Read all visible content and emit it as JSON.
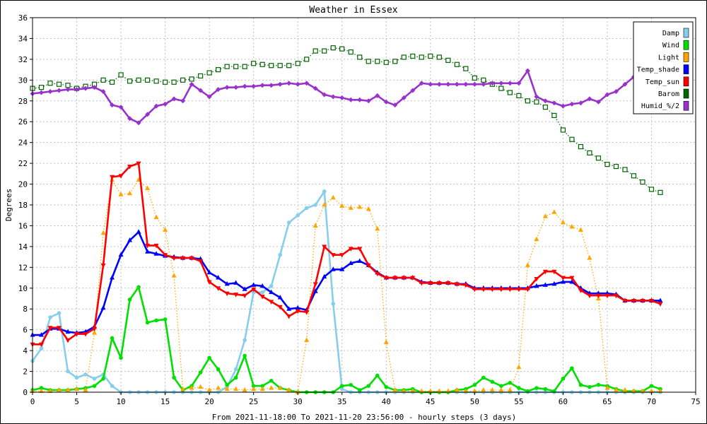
{
  "chart_data": {
    "type": "line",
    "title": "Weather in Essex",
    "ylabel": "Degrees",
    "xlabel": "From 2021-11-18:00 To 2021-11-20 23:56:00 - hourly steps (3 days)",
    "xlim": [
      0,
      75
    ],
    "ylim": [
      0,
      36
    ],
    "xticks": [
      0,
      5,
      10,
      15,
      20,
      25,
      30,
      35,
      40,
      45,
      50,
      55,
      60,
      65,
      70,
      75
    ],
    "yticks": [
      0,
      2,
      4,
      6,
      8,
      10,
      12,
      14,
      16,
      18,
      20,
      22,
      24,
      26,
      28,
      30,
      32,
      34,
      36
    ],
    "grid": true,
    "legend_position": "top-right",
    "x": [
      0,
      1,
      2,
      3,
      4,
      5,
      6,
      7,
      8,
      9,
      10,
      11,
      12,
      13,
      14,
      15,
      16,
      17,
      18,
      19,
      20,
      21,
      22,
      23,
      24,
      25,
      26,
      27,
      28,
      29,
      30,
      31,
      32,
      33,
      34,
      35,
      36,
      37,
      38,
      39,
      40,
      41,
      42,
      43,
      44,
      45,
      46,
      47,
      48,
      49,
      50,
      51,
      52,
      53,
      54,
      55,
      56,
      57,
      58,
      59,
      60,
      61,
      62,
      63,
      64,
      65,
      66,
      67,
      68,
      69,
      70,
      71
    ],
    "series": [
      {
        "name": "Damp",
        "color": "#87ceeb",
        "style": "solid",
        "marker": "circle",
        "values": [
          3.0,
          4.2,
          7.2,
          7.6,
          2.0,
          1.4,
          1.7,
          1.3,
          1.7,
          0.6,
          0,
          0,
          0,
          0,
          0,
          0,
          0,
          0,
          0,
          0,
          0,
          0,
          0.5,
          2.2,
          5.0,
          9.6,
          9.6,
          10.2,
          13.2,
          16.3,
          17.0,
          17.7,
          18.0,
          19.3,
          8.5,
          0.3,
          0,
          0,
          0,
          0,
          0,
          0,
          0,
          0,
          0,
          0,
          0,
          0,
          0,
          0,
          0,
          0,
          0,
          0,
          0,
          0,
          0,
          0,
          0,
          0,
          0,
          0,
          0,
          0,
          0,
          0,
          0,
          0,
          0,
          0,
          0,
          0
        ]
      },
      {
        "name": "Wind",
        "color": "#00e000",
        "style": "solid",
        "marker": "circle",
        "values": [
          0.2,
          0.4,
          0.2,
          0.2,
          0.2,
          0.3,
          0.4,
          0.6,
          1.3,
          5.2,
          3.3,
          8.9,
          10.1,
          6.7,
          6.9,
          7.0,
          1.4,
          0.2,
          0.6,
          1.9,
          3.3,
          2.2,
          0.7,
          1.4,
          3.5,
          0.6,
          0.6,
          1.1,
          0.4,
          0.2,
          0,
          0,
          0,
          0,
          0,
          0.6,
          0.7,
          0.2,
          0.6,
          1.6,
          0.5,
          0.2,
          0.2,
          0.3,
          0,
          0,
          0,
          0,
          0.2,
          0.3,
          0.7,
          1.4,
          1.0,
          0.6,
          0.9,
          0.4,
          0.1,
          0.4,
          0.3,
          0.1,
          1.3,
          2.3,
          0.7,
          0.5,
          0.7,
          0.6,
          0.3,
          0.1,
          0.1,
          0.1,
          0.6,
          0.3
        ]
      },
      {
        "name": "Light",
        "color": "#ffa500",
        "style": "dotted",
        "marker": "triangle-up",
        "values": [
          0.1,
          0.1,
          0.1,
          0.2,
          0.2,
          0.3,
          0.2,
          5.7,
          15.3,
          20.4,
          19.0,
          19.1,
          20.4,
          19.6,
          16.8,
          15.6,
          11.2,
          0.3,
          0.4,
          0.5,
          0.2,
          0.4,
          0.3,
          0.3,
          0.2,
          0.3,
          0.3,
          0.4,
          0.4,
          0.2,
          0,
          5.0,
          16.0,
          18.0,
          18.7,
          17.9,
          17.7,
          17.8,
          17.6,
          15.7,
          4.8,
          0.2,
          0.1,
          0.1,
          0.1,
          0.1,
          0.1,
          0.1,
          0.2,
          0.1,
          0.1,
          0.2,
          0.2,
          0.2,
          0.2,
          2.4,
          12.2,
          14.7,
          16.9,
          17.3,
          16.3,
          15.9,
          15.6,
          12.9,
          9.0,
          0.4,
          0.2,
          0.2,
          0.1,
          0.1,
          0.1,
          0.1
        ]
      },
      {
        "name": "Temp_shade",
        "color": "#0000ff",
        "style": "solid",
        "marker": "triangle-up",
        "values": [
          5.5,
          5.5,
          6.1,
          6.1,
          5.8,
          5.7,
          5.8,
          6.3,
          8.1,
          11.0,
          13.2,
          14.6,
          15.4,
          13.5,
          13.3,
          13.1,
          13.0,
          12.9,
          12.9,
          12.8,
          11.5,
          11.0,
          10.4,
          10.5,
          9.9,
          10.3,
          10.2,
          9.6,
          9.1,
          8.0,
          8.1,
          7.9,
          9.7,
          11.1,
          11.8,
          11.8,
          12.4,
          12.6,
          12.2,
          11.5,
          11.0,
          11.0,
          11.0,
          11.0,
          10.6,
          10.5,
          10.5,
          10.5,
          10.4,
          10.4,
          10.0,
          10.0,
          10.0,
          10.0,
          10.0,
          10.0,
          10.0,
          10.2,
          10.3,
          10.4,
          10.6,
          10.6,
          10.0,
          9.5,
          9.5,
          9.5,
          9.4,
          8.8,
          8.8,
          8.8,
          8.8,
          8.8
        ]
      },
      {
        "name": "Temp_sun",
        "color": "#ff0000",
        "style": "solid",
        "marker": "triangle-down",
        "values": [
          4.6,
          4.6,
          6.2,
          6.2,
          5.0,
          5.6,
          5.6,
          6.1,
          12.2,
          20.7,
          20.8,
          21.7,
          22.0,
          14.1,
          14.1,
          13.2,
          12.9,
          12.9,
          12.9,
          12.6,
          10.6,
          10.0,
          9.5,
          9.4,
          9.3,
          9.9,
          9.2,
          8.7,
          8.2,
          7.3,
          7.8,
          7.7,
          10.4,
          14.0,
          13.2,
          13.2,
          13.8,
          13.8,
          12.2,
          11.4,
          11.0,
          11.0,
          11.0,
          11.0,
          10.5,
          10.5,
          10.5,
          10.5,
          10.4,
          10.3,
          9.9,
          9.9,
          9.9,
          9.9,
          9.9,
          9.9,
          9.9,
          10.9,
          11.6,
          11.6,
          11.0,
          11.0,
          9.8,
          9.3,
          9.3,
          9.3,
          9.3,
          8.8,
          8.8,
          8.8,
          8.8,
          8.5
        ]
      },
      {
        "name": "Barom",
        "color": "#006400",
        "style": "dotted",
        "marker": "square",
        "values": [
          29.2,
          29.3,
          29.7,
          29.6,
          29.5,
          29.2,
          29.4,
          29.6,
          30.0,
          29.8,
          30.5,
          29.9,
          30.0,
          30.0,
          29.9,
          29.8,
          29.8,
          30.0,
          30.1,
          30.4,
          30.7,
          31.0,
          31.3,
          31.3,
          31.3,
          31.6,
          31.5,
          31.4,
          31.4,
          31.4,
          31.6,
          32.0,
          32.8,
          32.8,
          33.1,
          33.0,
          32.7,
          32.2,
          31.8,
          31.8,
          31.7,
          31.8,
          32.2,
          32.3,
          32.2,
          32.3,
          32.2,
          31.9,
          31.5,
          31.1,
          30.2,
          30.0,
          29.6,
          29.2,
          28.8,
          28.5,
          28.0,
          27.9,
          27.4,
          26.6,
          25.2,
          24.3,
          23.6,
          23.0,
          22.5,
          21.9,
          21.7,
          21.4,
          20.8,
          20.2,
          19.5,
          19.2
        ]
      },
      {
        "name": "Humid_%/2",
        "color": "#9932cc",
        "style": "solid",
        "marker": "diamond",
        "values": [
          28.7,
          28.8,
          28.9,
          29.0,
          29.1,
          29.1,
          29.2,
          29.3,
          28.9,
          27.6,
          27.4,
          26.3,
          25.9,
          26.7,
          27.5,
          27.7,
          28.2,
          28.0,
          29.6,
          29.0,
          28.4,
          29.1,
          29.3,
          29.3,
          29.4,
          29.4,
          29.5,
          29.5,
          29.6,
          29.7,
          29.6,
          29.7,
          29.2,
          28.6,
          28.4,
          28.3,
          28.1,
          28.1,
          28.0,
          28.5,
          27.9,
          27.6,
          28.3,
          29.0,
          29.7,
          29.6,
          29.6,
          29.6,
          29.6,
          29.6,
          29.6,
          29.6,
          29.7,
          29.7,
          29.7,
          29.7,
          30.9,
          28.4,
          28.0,
          27.8,
          27.5,
          27.7,
          27.8,
          28.2,
          27.9,
          28.6,
          28.9,
          29.6,
          30.3,
          null,
          null,
          null
        ]
      }
    ]
  }
}
